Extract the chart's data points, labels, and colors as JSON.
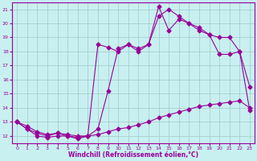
{
  "xlabel": "Windchill (Refroidissement éolien,°C)",
  "bg_color": "#c8f0f0",
  "grid_color": "#a0c8c8",
  "line_color": "#990099",
  "line1_x": [
    0,
    1,
    2,
    3,
    4,
    5,
    6,
    7,
    8,
    9,
    10,
    11,
    12,
    13,
    14,
    15,
    16,
    17,
    18,
    19,
    20,
    21,
    22,
    23
  ],
  "line1_y": [
    13.0,
    12.5,
    12.2,
    12.0,
    12.2,
    12.0,
    11.9,
    12.0,
    18.5,
    18.3,
    18.0,
    18.5,
    18.2,
    18.5,
    21.2,
    19.5,
    20.3,
    20.0,
    19.7,
    19.2,
    19.0,
    19.0,
    18.0,
    13.8
  ],
  "line2_x": [
    0,
    1,
    2,
    3,
    4,
    5,
    6,
    7,
    8,
    9,
    10,
    11,
    12,
    13,
    14,
    15,
    16,
    17,
    18,
    19,
    20,
    21,
    22,
    23
  ],
  "line2_y": [
    13.0,
    12.5,
    12.0,
    11.9,
    12.0,
    12.0,
    11.8,
    12.0,
    12.5,
    15.2,
    18.2,
    18.5,
    18.0,
    18.5,
    20.5,
    21.0,
    20.5,
    20.0,
    19.5,
    19.2,
    17.8,
    17.8,
    18.0,
    15.5
  ],
  "line3_x": [
    0,
    1,
    2,
    3,
    4,
    5,
    6,
    7,
    8,
    9,
    10,
    11,
    12,
    13,
    14,
    15,
    16,
    17,
    18,
    19,
    20,
    21,
    22,
    23
  ],
  "line3_y": [
    13.0,
    12.7,
    12.3,
    12.1,
    12.2,
    12.1,
    12.0,
    12.0,
    12.1,
    12.3,
    12.5,
    12.6,
    12.8,
    13.0,
    13.3,
    13.5,
    13.7,
    13.9,
    14.1,
    14.2,
    14.3,
    14.4,
    14.5,
    14.0
  ],
  "xlim": [
    -0.5,
    23.5
  ],
  "ylim": [
    11.5,
    21.5
  ],
  "yticks": [
    12,
    13,
    14,
    15,
    16,
    17,
    18,
    19,
    20,
    21
  ],
  "xticks": [
    0,
    1,
    2,
    3,
    4,
    5,
    6,
    7,
    8,
    9,
    10,
    11,
    12,
    13,
    14,
    15,
    16,
    17,
    18,
    19,
    20,
    21,
    22,
    23
  ]
}
